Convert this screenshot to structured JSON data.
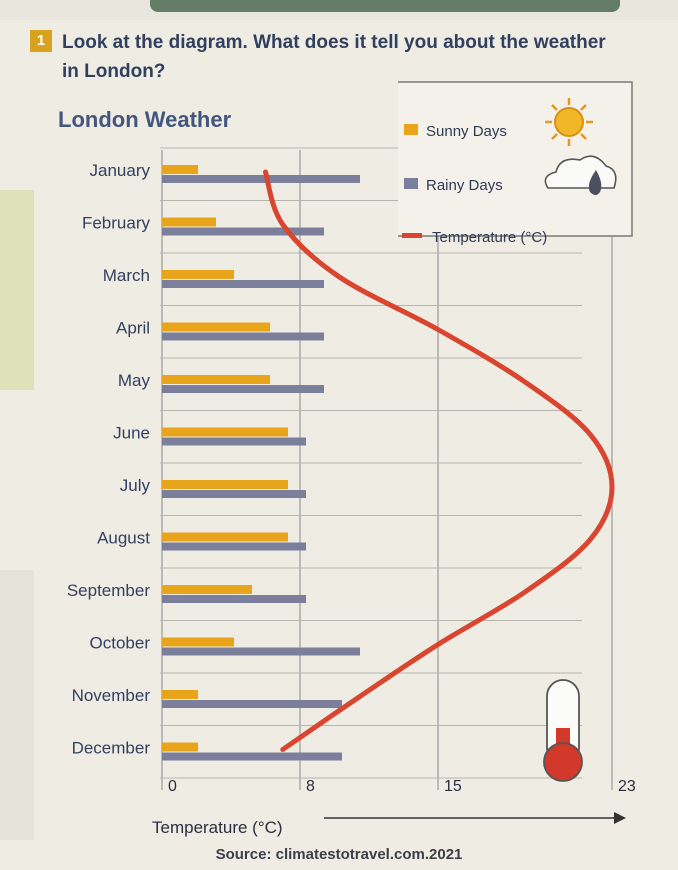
{
  "question": {
    "number": "1",
    "text": "Look at the diagram. What does it tell you about the weather in London?"
  },
  "source": "Source: climatestotravel.com.2021",
  "colors": {
    "sunny": "#e8a51c",
    "rainy": "#7b7f9c",
    "temperature": "#d9452e",
    "grid": "#9a9a9a"
  },
  "chart_data": {
    "type": "bar",
    "orientation": "horizontal",
    "title": "London Weather",
    "xlabel": "Temperature (°C)",
    "x_ticks": [
      0,
      8,
      15,
      23
    ],
    "xlim": [
      0,
      23
    ],
    "legend": {
      "placement": "top-right",
      "entries": [
        "Sunny Days",
        "Rainy Days",
        "Temperature (°C)"
      ]
    },
    "categories": [
      "January",
      "February",
      "March",
      "April",
      "May",
      "June",
      "July",
      "August",
      "September",
      "October",
      "November",
      "December"
    ],
    "series": [
      {
        "name": "Sunny Days",
        "values": [
          2,
          3,
          4,
          6,
          6,
          7,
          7,
          7,
          5,
          4,
          2,
          2
        ]
      },
      {
        "name": "Rainy Days",
        "values": [
          11,
          9,
          9,
          9,
          9,
          8,
          8,
          8,
          8,
          11,
          10,
          10
        ]
      },
      {
        "name": "Temperature (°C)",
        "values": [
          6,
          7,
          10,
          15,
          19,
          22,
          23,
          22,
          19,
          15,
          11,
          7
        ]
      }
    ]
  }
}
